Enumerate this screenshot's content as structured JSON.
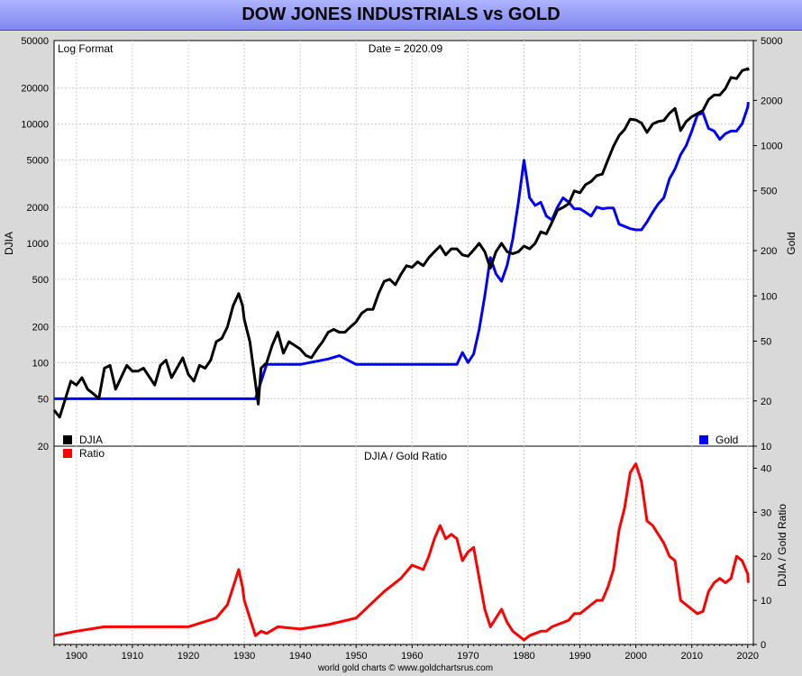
{
  "title": "DOW JONES INDUSTRIALS vs GOLD",
  "footer": "world gold charts © www.goldchartsrus.com",
  "colors": {
    "djia": "#000000",
    "gold": "#0000ff",
    "ratio": "#ff0000",
    "panel_bg": "#ffffff",
    "outer_bg": "#d9d9d9"
  },
  "chart_data": [
    {
      "type": "line",
      "annotations": [
        "Log Format",
        "Date = 2020.09"
      ],
      "xlabel": "",
      "ylabel": "DJIA",
      "ylabel_right": "Gold",
      "y_scale": "log",
      "right_y_scale": "log",
      "xlim": [
        1896,
        2021
      ],
      "ylim": [
        20,
        50000
      ],
      "ylim_right": [
        10,
        5000
      ],
      "y_ticks": [
        20,
        50,
        100,
        200,
        500,
        1000,
        2000,
        5000,
        10000,
        20000,
        50000
      ],
      "y_ticks_right": [
        10,
        20,
        50,
        100,
        200,
        500,
        1000,
        2000,
        5000
      ],
      "legend": [
        {
          "name": "DJIA",
          "position": "bottom-left"
        },
        {
          "name": "Gold",
          "position": "bottom-right"
        }
      ],
      "series": [
        {
          "name": "DJIA",
          "axis": "left",
          "x": [
            1896,
            1897,
            1899,
            1900,
            1901,
            1902,
            1903,
            1904,
            1905,
            1906,
            1907,
            1909,
            1910,
            1911,
            1912,
            1914,
            1915,
            1916,
            1917,
            1919,
            1920,
            1921,
            1922,
            1923,
            1924,
            1925,
            1926,
            1927,
            1928,
            1929,
            1929.7,
            1930,
            1931,
            1932.5,
            1933,
            1934,
            1935,
            1936,
            1937,
            1938,
            1939,
            1940,
            1941,
            1942,
            1943,
            1944,
            1945,
            1946,
            1947,
            1948,
            1949,
            1950,
            1951,
            1952,
            1953,
            1954,
            1955,
            1956,
            1957,
            1958,
            1959,
            1960,
            1961,
            1962,
            1963,
            1964,
            1965,
            1966,
            1967,
            1968,
            1969,
            1970,
            1971,
            1972,
            1973,
            1974,
            1975,
            1976,
            1977,
            1978,
            1979,
            1980,
            1981,
            1982,
            1983,
            1984,
            1985,
            1986,
            1987,
            1988,
            1989,
            1990,
            1991,
            1992,
            1993,
            1994,
            1995,
            1996,
            1997,
            1998,
            1999,
            2000,
            2001,
            2002,
            2003,
            2004,
            2005,
            2006,
            2007,
            2008,
            2009,
            2010,
            2011,
            2012,
            2013,
            2014,
            2015,
            2016,
            2017,
            2018,
            2019,
            2020,
            2020.09
          ],
          "y": [
            40,
            35,
            70,
            65,
            75,
            60,
            55,
            50,
            90,
            95,
            60,
            95,
            85,
            85,
            90,
            65,
            95,
            105,
            75,
            110,
            80,
            70,
            95,
            90,
            105,
            150,
            160,
            200,
            300,
            380,
            300,
            230,
            150,
            45,
            90,
            100,
            140,
            180,
            120,
            150,
            140,
            130,
            115,
            110,
            130,
            150,
            180,
            190,
            180,
            180,
            200,
            220,
            260,
            280,
            280,
            380,
            480,
            500,
            450,
            550,
            650,
            630,
            700,
            650,
            760,
            850,
            950,
            800,
            900,
            900,
            800,
            780,
            880,
            1000,
            850,
            620,
            850,
            1000,
            850,
            820,
            850,
            950,
            900,
            1000,
            1250,
            1200,
            1500,
            1900,
            2000,
            2150,
            2750,
            2650,
            3100,
            3300,
            3700,
            3800,
            5000,
            6500,
            8000,
            9000,
            11000,
            10800,
            10200,
            8500,
            10000,
            10500,
            10700,
            12300,
            13500,
            8800,
            10500,
            11500,
            12200,
            13000,
            16000,
            17500,
            17500,
            19800,
            24500,
            24000,
            28000,
            29000,
            28000
          ]
        },
        {
          "name": "Gold",
          "axis": "right",
          "x": [
            1896,
            1932,
            1934,
            1935,
            1940,
            1945,
            1947,
            1950,
            1955,
            1960,
            1965,
            1968,
            1969,
            1970,
            1971,
            1972,
            1973,
            1974,
            1975,
            1976,
            1977,
            1978,
            1979,
            1980,
            1981,
            1982,
            1983,
            1984,
            1985,
            1986,
            1987,
            1988,
            1989,
            1990,
            1991,
            1992,
            1993,
            1994,
            1995,
            1996,
            1997,
            1998,
            1999,
            2000,
            2001,
            2002,
            2003,
            2004,
            2005,
            2006,
            2007,
            2008,
            2009,
            2010,
            2011,
            2012,
            2013,
            2014,
            2015,
            2016,
            2017,
            2018,
            2019,
            2020,
            2020.09
          ],
          "y": [
            20.67,
            20.67,
            35,
            35,
            35,
            38,
            40,
            35,
            35,
            35,
            35,
            35,
            42,
            36,
            41,
            60,
            100,
            180,
            140,
            125,
            160,
            240,
            420,
            800,
            450,
            400,
            420,
            340,
            320,
            390,
            450,
            420,
            380,
            380,
            360,
            340,
            390,
            380,
            385,
            385,
            300,
            290,
            280,
            275,
            275,
            310,
            360,
            410,
            450,
            600,
            700,
            870,
            1000,
            1250,
            1600,
            1650,
            1300,
            1250,
            1100,
            1200,
            1250,
            1250,
            1400,
            1800,
            1950
          ]
        }
      ]
    },
    {
      "type": "line",
      "title": "DJIA / Gold Ratio",
      "ylabel_right": "DJIA / Gold Ratio",
      "xlim": [
        1896,
        2021
      ],
      "ylim": [
        0,
        45
      ],
      "y_ticks": [
        0,
        10,
        20,
        30,
        40
      ],
      "x_ticks": [
        1900,
        1910,
        1920,
        1930,
        1940,
        1950,
        1960,
        1970,
        1980,
        1990,
        2000,
        2010,
        2020
      ],
      "legend": [
        {
          "name": "Ratio",
          "position": "top-left"
        }
      ],
      "series": [
        {
          "name": "Ratio",
          "x": [
            1896,
            1900,
            1905,
            1910,
            1915,
            1920,
            1925,
            1927,
            1928,
            1929,
            1929.7,
            1930,
            1931,
            1932,
            1933,
            1934,
            1936,
            1940,
            1945,
            1950,
            1955,
            1958,
            1960,
            1962,
            1963,
            1964,
            1965,
            1966,
            1967,
            1968,
            1969,
            1970,
            1971,
            1972,
            1973,
            1974,
            1975,
            1976,
            1977,
            1978,
            1979,
            1980,
            1981,
            1982,
            1983,
            1984,
            1985,
            1986,
            1987,
            1988,
            1989,
            1990,
            1991,
            1992,
            1993,
            1994,
            1995,
            1996,
            1997,
            1998,
            1999,
            2000,
            2001,
            2002,
            2003,
            2004,
            2005,
            2006,
            2007,
            2008,
            2009,
            2010,
            2011,
            2012,
            2013,
            2014,
            2015,
            2016,
            2017,
            2018,
            2019,
            2020,
            2020.09
          ],
          "y": [
            2,
            3,
            4,
            4,
            4,
            4,
            6,
            9,
            13,
            17,
            13,
            10,
            6,
            2,
            3,
            2.5,
            4,
            3.5,
            4.5,
            6,
            12,
            15,
            18,
            17,
            20,
            24,
            27,
            24,
            25,
            24,
            19,
            21,
            22,
            15,
            8,
            4,
            6,
            8,
            5,
            3,
            2,
            1,
            2,
            2.5,
            3,
            3,
            4,
            4.5,
            5,
            5.5,
            7,
            7,
            8,
            9,
            10,
            10,
            13,
            17,
            26,
            31,
            39,
            41,
            37,
            28,
            27,
            25,
            23,
            20,
            19,
            10,
            9,
            8,
            7,
            7.5,
            12,
            14,
            15,
            14,
            15,
            20,
            19,
            16,
            14
          ]
        }
      ]
    }
  ]
}
